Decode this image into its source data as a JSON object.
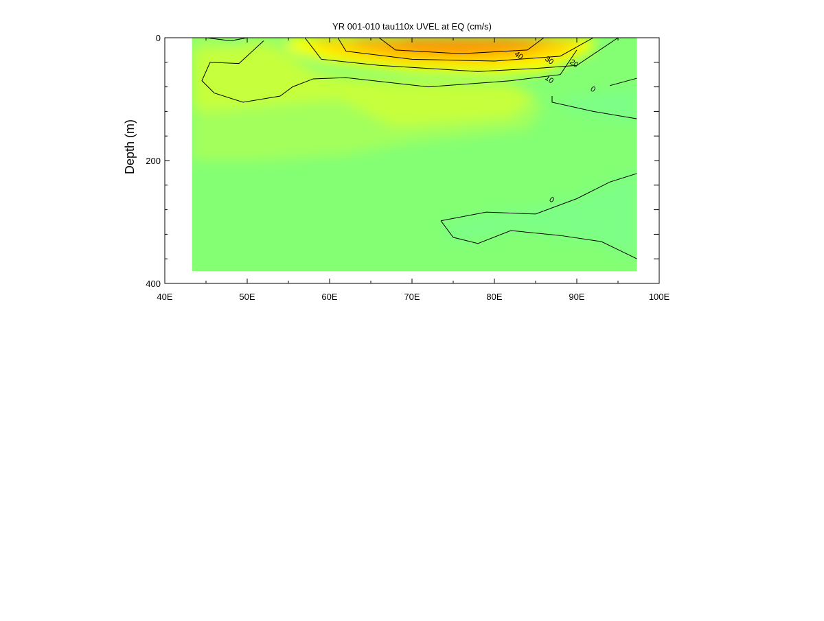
{
  "chart_data": {
    "type": "heatmap",
    "title": "YR 001-010 tau110x UVEL at EQ (cm/s)",
    "xlabel": "",
    "ylabel": "Depth (m)",
    "xlim": [
      40,
      100
    ],
    "ylim": [
      0,
      400
    ],
    "y_inverted": true,
    "x_ticks": [
      {
        "value": 40,
        "label": "40E"
      },
      {
        "value": 50,
        "label": "50E"
      },
      {
        "value": 60,
        "label": "60E"
      },
      {
        "value": 70,
        "label": "70E"
      },
      {
        "value": 80,
        "label": "80E"
      },
      {
        "value": 90,
        "label": "90E"
      },
      {
        "value": 100,
        "label": "100E"
      }
    ],
    "y_ticks": [
      {
        "value": 0,
        "label": "0"
      },
      {
        "value": 200,
        "label": "200"
      },
      {
        "value": 400,
        "label": "400"
      }
    ],
    "y_minor_ticks": [
      40,
      80,
      120,
      160,
      240,
      280,
      320,
      360
    ],
    "x_minor_ticks": [
      45,
      55,
      65,
      75,
      85,
      95
    ],
    "data_extent": {
      "lon": [
        43.3,
        97.3
      ],
      "depth": [
        0,
        380
      ]
    },
    "grid": false,
    "colors": {
      "background": "#84ff74",
      "light_green": "#a3ff5c",
      "yellow_green": "#c6ff3a",
      "yellow": "#ffff00",
      "gold": "#ffd500",
      "orange_light": "#ffaa00",
      "orange": "#ff8c00",
      "cool_green": "#7dff86"
    },
    "filled_regions": [
      {
        "color": "#a3ff5c",
        "points": [
          [
            43.3,
            0
          ],
          [
            54,
            0
          ],
          [
            56,
            30
          ],
          [
            62,
            70
          ],
          [
            82,
            80
          ],
          [
            86,
            110
          ],
          [
            84,
            150
          ],
          [
            70,
            170
          ],
          [
            62,
            190
          ],
          [
            52,
            200
          ],
          [
            43.3,
            200
          ]
        ]
      },
      {
        "color": "#c6ff3a",
        "points": [
          [
            43.3,
            20
          ],
          [
            52,
            10
          ],
          [
            55,
            30
          ],
          [
            58,
            60
          ],
          [
            68,
            70
          ],
          [
            82,
            75
          ],
          [
            85,
            95
          ],
          [
            82,
            130
          ],
          [
            68,
            145
          ],
          [
            61,
            100
          ],
          [
            52,
            110
          ],
          [
            45,
            120
          ],
          [
            43.3,
            110
          ]
        ]
      },
      {
        "color": "#c6ff3a",
        "points": [
          [
            46,
            60
          ],
          [
            50,
            55
          ],
          [
            52,
            70
          ],
          [
            50,
            90
          ],
          [
            47,
            85
          ]
        ]
      },
      {
        "color": "#ffff00",
        "points": [
          [
            55,
            0
          ],
          [
            92,
            0
          ],
          [
            92,
            20
          ],
          [
            86,
            55
          ],
          [
            80,
            60
          ],
          [
            70,
            55
          ],
          [
            60,
            40
          ],
          [
            55,
            20
          ]
        ]
      },
      {
        "color": "#ffd500",
        "points": [
          [
            58,
            0
          ],
          [
            91,
            0
          ],
          [
            88,
            30
          ],
          [
            80,
            45
          ],
          [
            70,
            42
          ],
          [
            62,
            30
          ],
          [
            58,
            12
          ]
        ]
      },
      {
        "color": "#ffaa00",
        "points": [
          [
            63,
            0
          ],
          [
            88,
            0
          ],
          [
            84,
            25
          ],
          [
            76,
            32
          ],
          [
            68,
            28
          ],
          [
            63,
            12
          ]
        ]
      },
      {
        "color": "#ff8c00",
        "points": [
          [
            68,
            0
          ],
          [
            85,
            0
          ],
          [
            82,
            15
          ],
          [
            76,
            20
          ],
          [
            70,
            16
          ]
        ]
      },
      {
        "color": "#7dff86",
        "points": [
          [
            88,
            100
          ],
          [
            97.3,
            80
          ],
          [
            97.3,
            140
          ],
          [
            91,
            125
          ],
          [
            88,
            115
          ]
        ]
      },
      {
        "color": "#7dff86",
        "points": [
          [
            74,
            300
          ],
          [
            80,
            285
          ],
          [
            86,
            275
          ],
          [
            92,
            250
          ],
          [
            97.3,
            215
          ],
          [
            97.3,
            360
          ],
          [
            92,
            330
          ],
          [
            82,
            315
          ],
          [
            76,
            335
          ],
          [
            74,
            320
          ]
        ]
      },
      {
        "color": "#7dff86",
        "points": [
          [
            47,
            0
          ],
          [
            50,
            0
          ],
          [
            49,
            8
          ],
          [
            47,
            5
          ]
        ]
      }
    ],
    "contours": [
      {
        "label": "10",
        "label_at": [
          86.5,
          71
        ],
        "points": [
          [
            52,
            5
          ],
          [
            49,
            42
          ],
          [
            45.5,
            40
          ],
          [
            44.5,
            70
          ],
          [
            46,
            90
          ],
          [
            49.5,
            105
          ],
          [
            54,
            95
          ],
          [
            55.5,
            80
          ],
          [
            58,
            67
          ],
          [
            62,
            65
          ],
          [
            72,
            80
          ],
          [
            80,
            72
          ],
          [
            82,
            70
          ],
          [
            88,
            60
          ],
          [
            90,
            20
          ]
        ]
      },
      {
        "label": "20",
        "label_at": [
          89.5,
          45
        ],
        "points": [
          [
            57,
            0
          ],
          [
            59,
            35
          ],
          [
            66,
            45
          ],
          [
            78,
            55
          ],
          [
            85,
            50
          ],
          [
            90,
            45
          ],
          [
            95,
            0
          ]
        ]
      },
      {
        "label": "30",
        "label_at": [
          86.5,
          40
        ],
        "points": [
          [
            61,
            0
          ],
          [
            62,
            22
          ],
          [
            70,
            35
          ],
          [
            80,
            38
          ],
          [
            88,
            30
          ],
          [
            92,
            0
          ]
        ]
      },
      {
        "label": "40",
        "label_at": [
          82.8,
          32
        ],
        "points": [
          [
            66,
            0
          ],
          [
            68,
            20
          ],
          [
            76,
            26
          ],
          [
            84,
            20
          ],
          [
            86,
            0
          ]
        ]
      },
      {
        "label": "0",
        "label_at": [
          91.8,
          87
        ],
        "points": [
          [
            87,
            95
          ],
          [
            87,
            105
          ],
          [
            92,
            120
          ],
          [
            97.3,
            132
          ]
        ]
      },
      {
        "label": "",
        "label_at": null,
        "points": [
          [
            94,
            78
          ],
          [
            97.3,
            66
          ]
        ]
      },
      {
        "label": "0",
        "label_at": [
          86.8,
          267
        ],
        "points": [
          [
            73.5,
            298
          ],
          [
            75,
            325
          ],
          [
            78,
            335
          ],
          [
            82,
            314
          ],
          [
            88,
            322
          ],
          [
            93,
            332
          ],
          [
            97.3,
            360
          ]
        ]
      },
      {
        "label": "",
        "label_at": null,
        "points": [
          [
            73.5,
            298
          ],
          [
            79,
            284
          ],
          [
            85,
            287
          ],
          [
            90,
            262
          ],
          [
            94,
            235
          ],
          [
            97.3,
            221
          ]
        ]
      },
      {
        "label": "",
        "label_at": null,
        "points": [
          [
            45,
            0
          ],
          [
            48,
            5
          ],
          [
            50,
            0
          ]
        ]
      }
    ]
  }
}
